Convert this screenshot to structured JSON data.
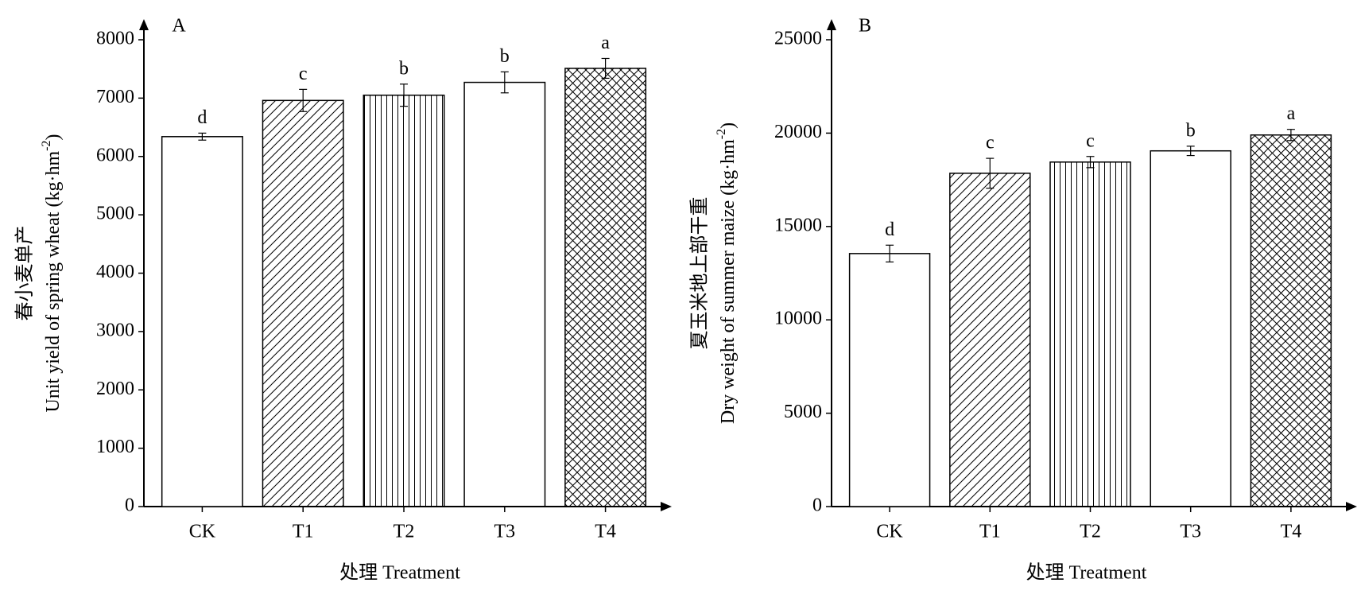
{
  "chart_data": [
    {
      "type": "bar",
      "title": "A",
      "ylabel": {
        "cn": "春小麦单产",
        "en": "Unit yield of spring wheat (kg·hm",
        "sup": "-2",
        "end": ")"
      },
      "xlabel": "处理 Treatment",
      "categories": [
        "CK",
        "T1",
        "T2",
        "T3",
        "T4"
      ],
      "values": [
        6340,
        6960,
        7050,
        7270,
        7510
      ],
      "errors": [
        60,
        190,
        190,
        180,
        170
      ],
      "annotations": [
        "d",
        "c",
        "b",
        "b",
        "a"
      ],
      "hatches": [
        "none",
        "/",
        "|",
        "\\",
        "x"
      ],
      "color": "#000000",
      "ylim": [
        0,
        8000
      ],
      "yticks": [
        0,
        1000,
        2000,
        3000,
        4000,
        5000,
        6000,
        7000,
        8000
      ]
    },
    {
      "type": "bar",
      "title": "B",
      "ylabel": {
        "cn": "夏玉米地上部干重",
        "en": "Dry weight of summer maize (kg·hm",
        "sup": "-2",
        "end": ")"
      },
      "xlabel": "处理 Treatment",
      "categories": [
        "CK",
        "T1",
        "T2",
        "T3",
        "T4"
      ],
      "values": [
        13550,
        17850,
        18450,
        19050,
        19900
      ],
      "errors": [
        450,
        800,
        300,
        250,
        300
      ],
      "annotations": [
        "d",
        "c",
        "c",
        "b",
        "a"
      ],
      "hatches": [
        "none",
        "/",
        "|",
        "\\",
        "x"
      ],
      "color": "#000000",
      "ylim": [
        0,
        25000
      ],
      "yticks": [
        0,
        5000,
        10000,
        15000,
        20000,
        25000
      ]
    }
  ]
}
